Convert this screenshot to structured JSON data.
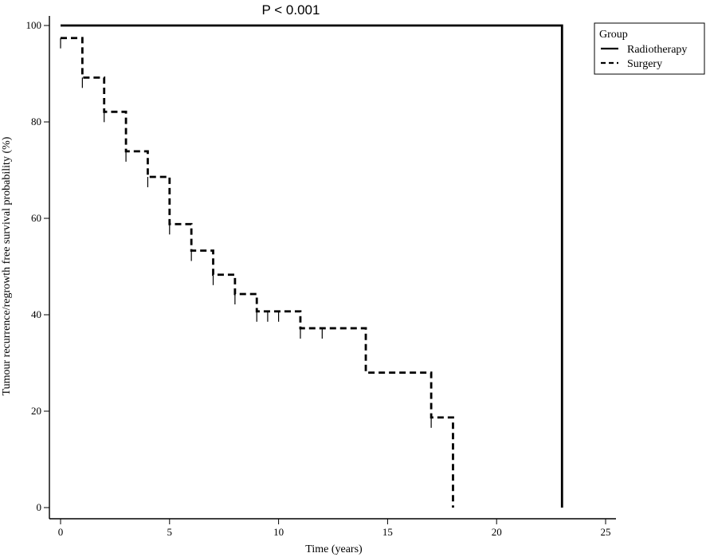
{
  "chart_data": {
    "type": "line",
    "subtype": "kaplan-meier",
    "title": "P < 0.001",
    "xlabel": "Time (years)",
    "ylabel": "Tumour recurrence/regrowth free survival probability (%)",
    "xlim": [
      0,
      25
    ],
    "ylim": [
      0,
      100
    ],
    "xticks": [
      0,
      5,
      10,
      15,
      20,
      25
    ],
    "yticks": [
      0,
      20,
      40,
      60,
      80,
      100
    ],
    "grid": false,
    "legend": {
      "title": "Group",
      "position": "top-right",
      "entries": [
        "Radiotherapy",
        "Surgery"
      ]
    },
    "series": [
      {
        "name": "Radiotherapy",
        "style": "solid",
        "color": "#000000",
        "steps": [
          [
            0,
            100
          ],
          [
            23,
            100
          ],
          [
            23,
            0
          ]
        ],
        "censored": []
      },
      {
        "name": "Surgery",
        "style": "dashed",
        "color": "#000000",
        "steps": [
          [
            0,
            97.4
          ],
          [
            1,
            89.2
          ],
          [
            2,
            82.1
          ],
          [
            3,
            73.9
          ],
          [
            4,
            68.6
          ],
          [
            5,
            58.8
          ],
          [
            6,
            53.3
          ],
          [
            7,
            48.3
          ],
          [
            8,
            44.3
          ],
          [
            9,
            40.7
          ],
          [
            11,
            37.2
          ],
          [
            14,
            28.0
          ],
          [
            17,
            18.7
          ],
          [
            18,
            0
          ]
        ],
        "censored": [
          [
            0,
            97.4
          ],
          [
            1,
            89.2
          ],
          [
            2,
            82.1
          ],
          [
            3,
            73.9
          ],
          [
            4,
            68.6
          ],
          [
            5,
            58.8
          ],
          [
            6,
            53.3
          ],
          [
            7,
            48.3
          ],
          [
            8,
            44.3
          ],
          [
            9,
            40.7
          ],
          [
            9.5,
            40.7
          ],
          [
            10,
            40.7
          ],
          [
            11,
            37.2
          ],
          [
            12,
            37.2
          ],
          [
            17,
            18.7
          ]
        ]
      }
    ]
  }
}
